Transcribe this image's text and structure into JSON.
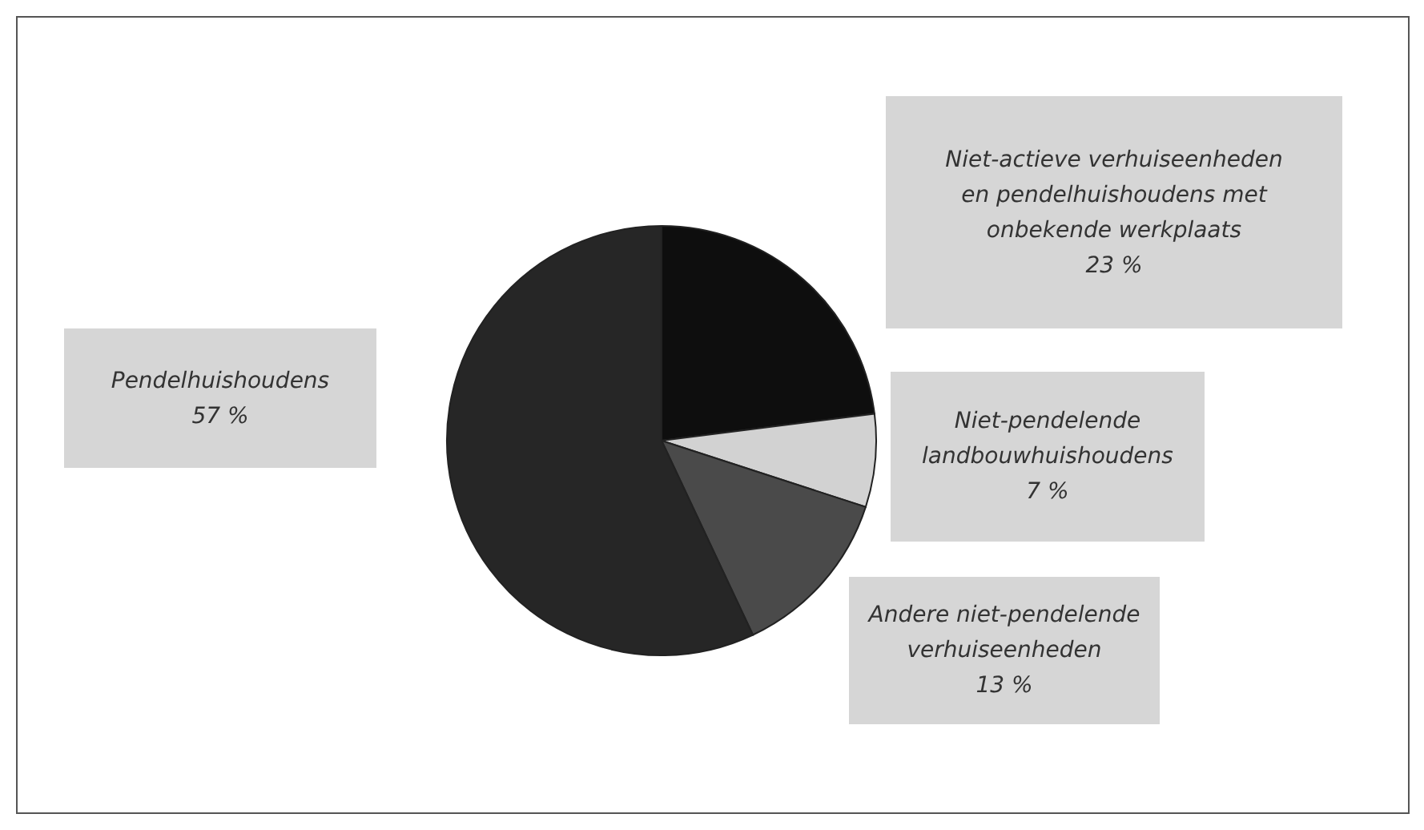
{
  "chart_data": {
    "type": "pie",
    "categories": [
      "Niet-actieve verhuiseenheden en pendelhuishoudens met onbekende werkplaats",
      "Niet-pendelende landbouwhuishoudens",
      "Andere niet-pendelende verhuiseenheden",
      "Pendelhuishoudens"
    ],
    "values": [
      23,
      7,
      13,
      57
    ],
    "colors": [
      "#0e0e0e",
      "#d2d2d2",
      "#4a4a4a",
      "#262626"
    ],
    "value_labels": [
      "23 %",
      "7 %",
      "13 %",
      "57 %"
    ]
  }
}
